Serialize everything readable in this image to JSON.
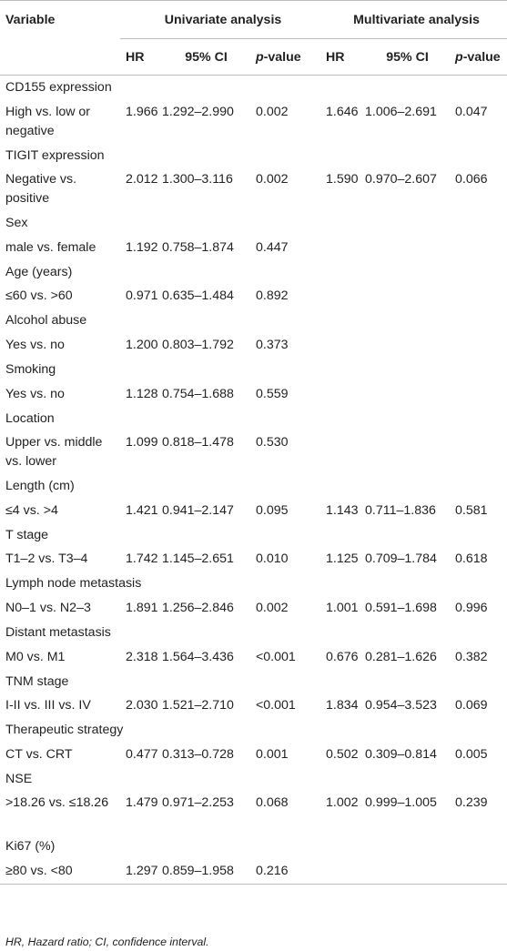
{
  "table": {
    "header": {
      "variable": "Variable",
      "univariate": "Univariate analysis",
      "multivariate": "Multivariate analysis",
      "hr": "HR",
      "ci": "95% CI",
      "p_italic": "p",
      "p_rest": "-value"
    },
    "sections": [
      {
        "title": "CD155 expression",
        "row": {
          "label": "High vs. low or negative",
          "uni_hr": "1.966",
          "uni_ci": "1.292–2.990",
          "uni_p": "0.002",
          "mul_hr": "1.646",
          "mul_ci": "1.006–2.691",
          "mul_p": "0.047"
        },
        "lines": 2
      },
      {
        "title": "TIGIT expression",
        "row": {
          "label": "Negative vs. positive",
          "uni_hr": "2.012",
          "uni_ci": "1.300–3.116",
          "uni_p": "0.002",
          "mul_hr": "1.590",
          "mul_ci": "0.970–2.607",
          "mul_p": "0.066"
        },
        "lines": 2
      },
      {
        "title": "Sex",
        "row": {
          "label": "male vs. female",
          "uni_hr": "1.192",
          "uni_ci": "0.758–1.874",
          "uni_p": "0.447",
          "mul_hr": "",
          "mul_ci": "",
          "mul_p": ""
        },
        "lines": 1
      },
      {
        "title": "Age (years)",
        "row": {
          "label": "≤60 vs. >60",
          "uni_hr": "0.971",
          "uni_ci": "0.635–1.484",
          "uni_p": "0.892",
          "mul_hr": "",
          "mul_ci": "",
          "mul_p": ""
        },
        "lines": 1
      },
      {
        "title": "Alcohol abuse",
        "row": {
          "label": "Yes vs. no",
          "uni_hr": "1.200",
          "uni_ci": "0.803–1.792",
          "uni_p": "0.373",
          "mul_hr": "",
          "mul_ci": "",
          "mul_p": ""
        },
        "lines": 1
      },
      {
        "title": "Smoking",
        "row": {
          "label": "Yes vs. no",
          "uni_hr": "1.128",
          "uni_ci": "0.754–1.688",
          "uni_p": "0.559",
          "mul_hr": "",
          "mul_ci": "",
          "mul_p": ""
        },
        "lines": 1
      },
      {
        "title": "Location",
        "row": {
          "label": "Upper vs. middle vs. lower",
          "uni_hr": "1.099",
          "uni_ci": "0.818–1.478",
          "uni_p": "0.530",
          "mul_hr": "",
          "mul_ci": "",
          "mul_p": ""
        },
        "lines": 2
      },
      {
        "title": "Length (cm)",
        "row": {
          "label": "≤4 vs. >4",
          "uni_hr": "1.421",
          "uni_ci": "0.941–2.147",
          "uni_p": "0.095",
          "mul_hr": "1.143",
          "mul_ci": "0.711–1.836",
          "mul_p": "0.581"
        },
        "lines": 1
      },
      {
        "title": "T stage",
        "row": {
          "label": "T1–2 vs. T3–4",
          "uni_hr": "1.742",
          "uni_ci": "1.145–2.651",
          "uni_p": "0.010",
          "mul_hr": "1.125",
          "mul_ci": "0.709–1.784",
          "mul_p": "0.618"
        },
        "lines": 1
      },
      {
        "title": "Lymph node metastasis",
        "row": {
          "label": "N0–1 vs. N2–3",
          "uni_hr": "1.891",
          "uni_ci": "1.256–2.846",
          "uni_p": "0.002",
          "mul_hr": "1.001",
          "mul_ci": "0.591–1.698",
          "mul_p": "0.996"
        },
        "lines": 1
      },
      {
        "title": "Distant metastasis",
        "row": {
          "label": "M0 vs. M1",
          "uni_hr": "2.318",
          "uni_ci": "1.564–3.436",
          "uni_p": "<0.001",
          "mul_hr": "0.676",
          "mul_ci": "0.281–1.626",
          "mul_p": "0.382"
        },
        "lines": 1
      },
      {
        "title": "TNM stage",
        "row": {
          "label": "I-II vs. III vs. IV",
          "uni_hr": "2.030",
          "uni_ci": "1.521–2.710",
          "uni_p": "<0.001",
          "mul_hr": "1.834",
          "mul_ci": "0.954–3.523",
          "mul_p": "0.069"
        },
        "lines": 1
      },
      {
        "title": "Therapeutic strategy",
        "row": {
          "label": "CT vs. CRT",
          "uni_hr": "0.477",
          "uni_ci": "0.313–0.728",
          "uni_p": "0.001",
          "mul_hr": "0.502",
          "mul_ci": "0.309–0.814",
          "mul_p": "0.005"
        },
        "lines": 1
      },
      {
        "title": "NSE",
        "row": {
          "label": ">18.26 vs. ≤18.26",
          "uni_hr": "1.479",
          "uni_ci": "0.971–2.253",
          "uni_p": "0.068",
          "mul_hr": "1.002",
          "mul_ci": "0.999–1.005",
          "mul_p": "0.239"
        },
        "lines": 2
      },
      {
        "title": "Ki67 (%)",
        "row": {
          "label": "≥80 vs. <80",
          "uni_hr": "1.297",
          "uni_ci": "0.859–1.958",
          "uni_p": "0.216",
          "mul_hr": "",
          "mul_ci": "",
          "mul_p": ""
        },
        "lines": 1
      }
    ],
    "footnote": "HR, Hazard ratio; CI, confidence interval."
  }
}
